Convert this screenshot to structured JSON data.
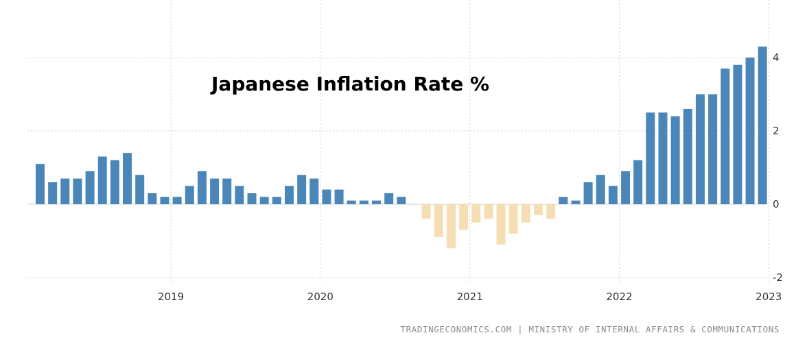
{
  "chart_data": {
    "type": "bar",
    "title": "Japanese Inflation Rate %",
    "source": "TRADINGECONOMICS.COM | MINISTRY OF INTERNAL AFFAIRS & COMMUNICATIONS",
    "xlabel": "",
    "ylabel": "",
    "ylim": [
      -2,
      4.5
    ],
    "y_ticks": [
      4,
      2,
      0,
      -2
    ],
    "x_ticks": [
      {
        "label": "2019",
        "index": 10.5
      },
      {
        "label": "2020",
        "index": 22.5
      },
      {
        "label": "2021",
        "index": 34.5
      },
      {
        "label": "2022",
        "index": 46.5
      },
      {
        "label": "2023",
        "index": 58.5
      }
    ],
    "grid": true,
    "y_axis_position": "right",
    "colors": {
      "positive": "#4a86b8",
      "negative": "#f5deb3"
    },
    "x_start": "2018-03",
    "x_end": "2023-01",
    "categories": [
      "2018-03",
      "2018-04",
      "2018-05",
      "2018-06",
      "2018-07",
      "2018-08",
      "2018-09",
      "2018-10",
      "2018-11",
      "2018-12",
      "2019-01",
      "2019-02",
      "2019-03",
      "2019-04",
      "2019-05",
      "2019-06",
      "2019-07",
      "2019-08",
      "2019-09",
      "2019-10",
      "2019-11",
      "2019-12",
      "2020-01",
      "2020-02",
      "2020-03",
      "2020-04",
      "2020-05",
      "2020-06",
      "2020-07",
      "2020-08",
      "2020-09",
      "2020-10",
      "2020-11",
      "2020-12",
      "2021-01",
      "2021-02",
      "2021-03",
      "2021-04",
      "2021-05",
      "2021-06",
      "2021-07",
      "2021-08",
      "2021-09",
      "2021-10",
      "2021-11",
      "2021-12",
      "2022-01",
      "2022-02",
      "2022-03",
      "2022-04",
      "2022-05",
      "2022-06",
      "2022-07",
      "2022-08",
      "2022-09",
      "2022-10",
      "2022-11",
      "2022-12",
      "2023-01"
    ],
    "values": [
      1.1,
      0.6,
      0.7,
      0.7,
      0.9,
      1.3,
      1.2,
      1.4,
      0.8,
      0.3,
      0.2,
      0.2,
      0.5,
      0.9,
      0.7,
      0.7,
      0.5,
      0.3,
      0.2,
      0.2,
      0.5,
      0.8,
      0.7,
      0.4,
      0.4,
      0.1,
      0.1,
      0.1,
      0.3,
      0.2,
      0.0,
      -0.4,
      -0.9,
      -1.2,
      -0.7,
      -0.5,
      -0.4,
      -1.1,
      -0.8,
      -0.5,
      -0.3,
      -0.4,
      0.2,
      0.1,
      0.6,
      0.8,
      0.5,
      0.9,
      1.2,
      2.5,
      2.5,
      2.4,
      2.6,
      3.0,
      3.0,
      3.7,
      3.8,
      4.0,
      4.3
    ]
  }
}
